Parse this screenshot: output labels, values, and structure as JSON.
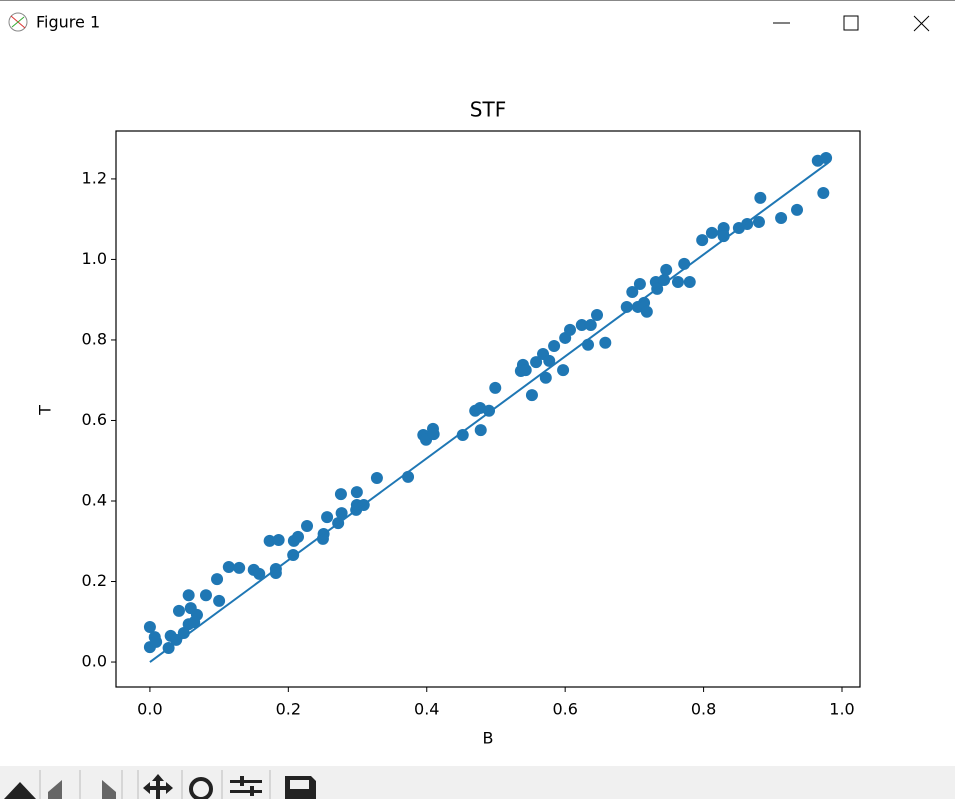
{
  "window": {
    "title": "Figure 1"
  },
  "chart_data": {
    "type": "scatter",
    "title": "STF",
    "x_label": "B",
    "y_label": "T",
    "xlim": [
      -0.049,
      1.026
    ],
    "ylim": [
      -0.062,
      1.319
    ],
    "xticks": [
      {
        "value": 0,
        "label": "0.0"
      },
      0.2,
      0.4,
      0.6,
      0.8,
      {
        "value": 1,
        "label": "1.0"
      }
    ],
    "yticks": [
      {
        "value": 0,
        "label": "0.0"
      },
      0.2,
      0.4,
      0.6,
      0.8,
      {
        "value": 1,
        "label": "1.0"
      },
      1.2
    ],
    "series": [
      {
        "type": "scatter",
        "color": "#1f77b4",
        "x": [
          0.0,
          0.0,
          0.007,
          0.009,
          0.027,
          0.03,
          0.038,
          0.042,
          0.049,
          0.056,
          0.056,
          0.059,
          0.064,
          0.068,
          0.081,
          0.097,
          0.1,
          0.114,
          0.129,
          0.15,
          0.158,
          0.173,
          0.182,
          0.182,
          0.186,
          0.207,
          0.208,
          0.214,
          0.227,
          0.25,
          0.251,
          0.256,
          0.272,
          0.276,
          0.277,
          0.298,
          0.299,
          0.299,
          0.309,
          0.328,
          0.373,
          0.395,
          0.399,
          0.409,
          0.41,
          0.452,
          0.47,
          0.477,
          0.478,
          0.49,
          0.499,
          0.536,
          0.539,
          0.543,
          0.552,
          0.558,
          0.568,
          0.572,
          0.577,
          0.584,
          0.597,
          0.6,
          0.607,
          0.624,
          0.633,
          0.637,
          0.646,
          0.658,
          0.689,
          0.697,
          0.705,
          0.708,
          0.714,
          0.718,
          0.731,
          0.733,
          0.743,
          0.746,
          0.763,
          0.772,
          0.78,
          0.798,
          0.812,
          0.828,
          0.829,
          0.829,
          0.851,
          0.863,
          0.88,
          0.882,
          0.912,
          0.935,
          0.965,
          0.973,
          0.977
        ],
        "values": [
          0.087,
          0.037,
          0.062,
          0.05,
          0.035,
          0.065,
          0.055,
          0.127,
          0.072,
          0.166,
          0.094,
          0.134,
          0.099,
          0.117,
          0.166,
          0.206,
          0.152,
          0.236,
          0.234,
          0.229,
          0.219,
          0.301,
          0.231,
          0.221,
          0.303,
          0.266,
          0.301,
          0.311,
          0.338,
          0.306,
          0.318,
          0.36,
          0.345,
          0.417,
          0.37,
          0.378,
          0.422,
          0.39,
          0.39,
          0.457,
          0.46,
          0.564,
          0.552,
          0.579,
          0.566,
          0.564,
          0.624,
          0.631,
          0.576,
          0.624,
          0.681,
          0.723,
          0.738,
          0.725,
          0.663,
          0.745,
          0.765,
          0.706,
          0.748,
          0.785,
          0.725,
          0.805,
          0.825,
          0.837,
          0.788,
          0.837,
          0.862,
          0.793,
          0.882,
          0.919,
          0.882,
          0.939,
          0.892,
          0.87,
          0.944,
          0.927,
          0.949,
          0.974,
          0.944,
          0.989,
          0.944,
          1.048,
          1.066,
          1.066,
          1.078,
          1.058,
          1.078,
          1.088,
          1.093,
          1.153,
          1.103,
          1.123,
          1.245,
          1.165,
          1.252
        ]
      },
      {
        "type": "line",
        "color": "#1f77b4",
        "x": [
          0,
          0.98
        ],
        "values": [
          0,
          1.24
        ]
      }
    ]
  }
}
